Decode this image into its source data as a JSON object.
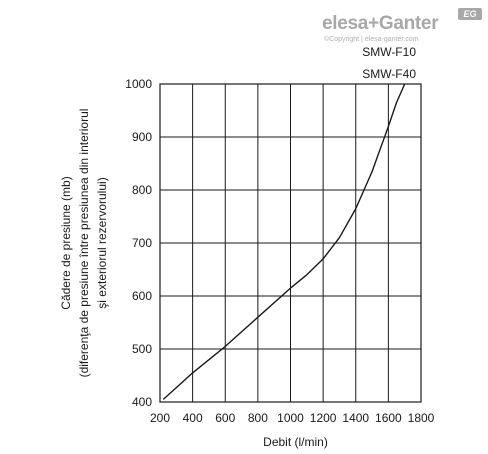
{
  "logo": {
    "brand": "elesa+Ganter",
    "badge": "EG",
    "copyright": "©Copyright | elesa-ganter.com"
  },
  "chart_data": {
    "type": "line",
    "title": "",
    "xlabel": "Debit (l/min)",
    "ylabel_lines": [
      "Cădere de presiune (mb)",
      "(diferenţa de presiune între presiunea din interiorul",
      "şi exteriorul rezervorului)"
    ],
    "xlim": [
      200,
      1800
    ],
    "ylim": [
      400,
      1000
    ],
    "x_ticks": [
      200,
      400,
      600,
      800,
      1000,
      1200,
      1400,
      1600,
      1800
    ],
    "y_ticks": [
      400,
      500,
      600,
      700,
      800,
      900,
      1000
    ],
    "grid": true,
    "series_labels": [
      "SMW-F10",
      "SMW-F40"
    ],
    "series": [
      {
        "name": "SMW-F10 / SMW-F40",
        "x": [
          220,
          400,
          600,
          800,
          1000,
          1100,
          1200,
          1300,
          1400,
          1500,
          1600,
          1650,
          1700
        ],
        "y": [
          405,
          455,
          505,
          560,
          615,
          640,
          670,
          710,
          765,
          835,
          920,
          965,
          1000
        ]
      }
    ]
  }
}
